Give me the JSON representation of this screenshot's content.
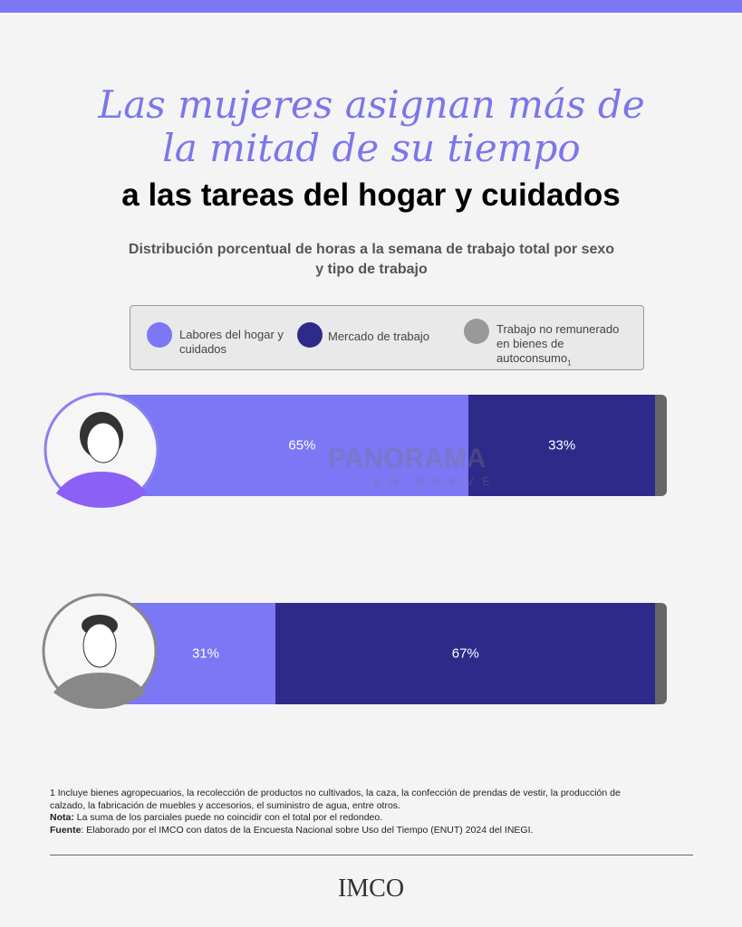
{
  "header": {
    "title_line1": "Las mujeres asignan más de la mitad de su tiempo",
    "title_line2": "a las tareas del hogar y cuidados"
  },
  "chart_data": {
    "type": "bar",
    "orientation": "horizontal",
    "stacked": true,
    "subtitle": "Distribución porcentual de horas a la semana de trabajo total por sexo y tipo de trabajo",
    "categories": [
      null,
      null
    ],
    "series": [
      {
        "name": "Labores del hogar y cuidados",
        "color": "#7b77f5",
        "values": [
          65,
          31
        ],
        "value_labels": [
          "65%",
          "31%"
        ]
      },
      {
        "name": "Mercado de trabajo",
        "color": "#2e2a8a",
        "values": [
          33,
          67
        ],
        "value_labels": [
          "33%",
          "67%"
        ]
      },
      {
        "name": "Trabajo no remunerado en bienes de autoconsumo",
        "name_note": "1",
        "color": "#666666",
        "values": [
          2,
          2
        ]
      }
    ]
  },
  "watermark": {
    "line1": "PANORAMA",
    "line2": "EN BREVE"
  },
  "footer": {
    "note1_mark": "1",
    "note1": "Incluye bienes agropecuarios, la recolección de productos no cultivados, la caza, la confección de prendas de vestir, la producción de calzado, la fabricación de muebles y accesorios, el suministro de agua, entre otros.",
    "nota_label": "Nota:",
    "nota": "La suma de los parciales puede no coincidir con el total por el redondeo.",
    "fuente_label": "Fuente",
    "fuente": ": Elaborado por el IMCO con datos de la Encuesta Nacional sobre Uso del Tiempo (ENUT) 2024 del INEGI.",
    "logo": "IMCO"
  }
}
